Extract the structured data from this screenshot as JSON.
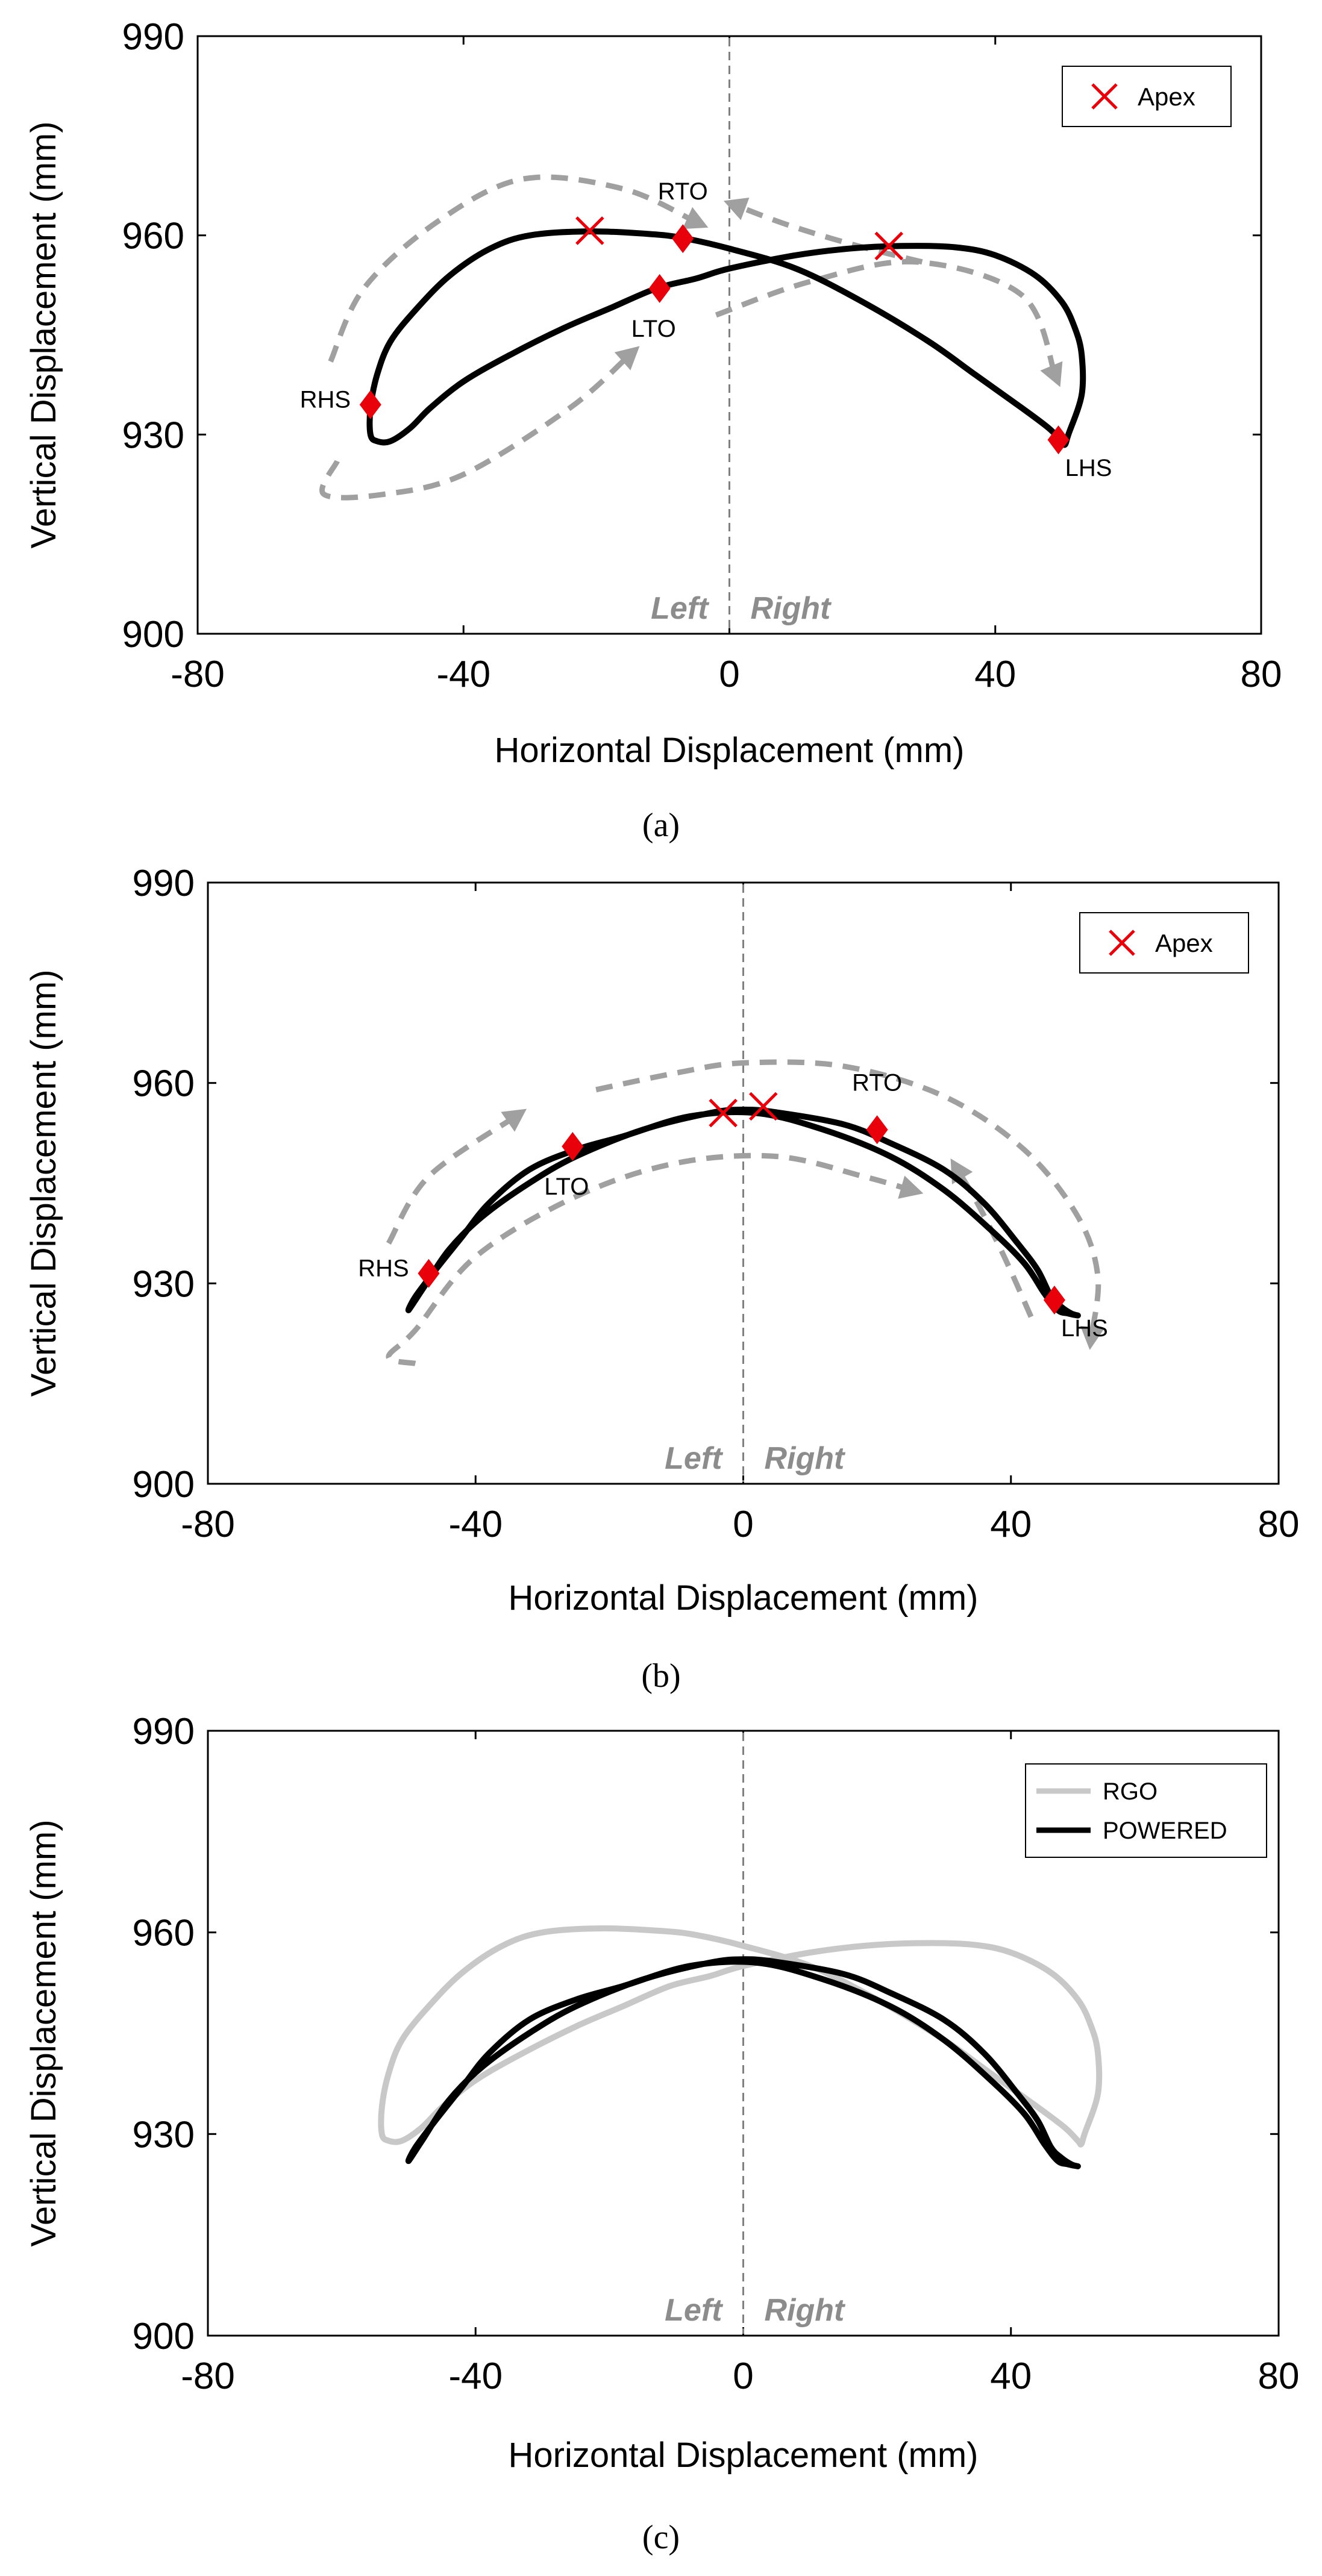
{
  "colors": {
    "trajectory": "#000000",
    "rgo": "#c8c8c8",
    "marker": "#e8000b",
    "arrow": "#a0a0a0",
    "centerline": "#808080",
    "lr_text": "#8c8c8c"
  },
  "chart_data": [
    {
      "type": "line",
      "caption": "(a)",
      "xlabel": "Horizontal Displacement (mm)",
      "ylabel": "Vertical Displacement (mm)",
      "xlim": [
        -80,
        80
      ],
      "ylim": [
        900,
        990
      ],
      "xticks": [
        "-80",
        "-40",
        "0",
        "40",
        "80"
      ],
      "yticks": [
        "900",
        "930",
        "960",
        "990"
      ],
      "side_labels": [
        "Left",
        "Right"
      ],
      "legend": [
        "Apex"
      ],
      "series": [
        {
          "name": "trajectory",
          "style": "black",
          "points": [
            [
              -54,
              934
            ],
            [
              -53,
              939
            ],
            [
              -51,
              944
            ],
            [
              -47,
              949
            ],
            [
              -42,
              954
            ],
            [
              -36,
              958
            ],
            [
              -30,
              960
            ],
            [
              -21,
              960.6
            ],
            [
              -12,
              960.2
            ],
            [
              -7,
              959.6
            ],
            [
              0,
              958
            ],
            [
              10,
              955
            ],
            [
              20,
              950
            ],
            [
              30,
              944
            ],
            [
              37,
              939
            ],
            [
              44,
              934
            ],
            [
              48,
              931
            ],
            [
              50,
              929
            ],
            [
              50.5,
              928.5
            ],
            [
              51,
              930
            ],
            [
              53,
              936
            ],
            [
              53,
              942
            ],
            [
              52,
              946
            ],
            [
              50,
              950
            ],
            [
              46,
              954
            ],
            [
              40,
              957
            ],
            [
              34,
              958.2
            ],
            [
              26,
              958.4
            ],
            [
              18,
              958
            ],
            [
              10,
              957
            ],
            [
              0,
              955
            ],
            [
              -5,
              953.5
            ],
            [
              -11,
              952
            ],
            [
              -18,
              949
            ],
            [
              -25,
              946
            ],
            [
              -33,
              942
            ],
            [
              -40,
              938
            ],
            [
              -45,
              934
            ],
            [
              -48,
              931
            ],
            [
              -51,
              929
            ],
            [
              -53,
              929
            ],
            [
              -54,
              930
            ],
            [
              -54,
              934
            ]
          ]
        }
      ],
      "events": [
        {
          "label": "RHS",
          "x": -54,
          "y": 934.5
        },
        {
          "label": "RTO",
          "x": -7,
          "y": 959.5
        },
        {
          "label": "LTO",
          "x": -10.5,
          "y": 952
        },
        {
          "label": "LHS",
          "x": 49.5,
          "y": 929.2
        }
      ],
      "apex": [
        [
          -21,
          960.7
        ],
        [
          24,
          958.4
        ]
      ],
      "direction_arrows": [
        [
          [
            -60,
            941
          ],
          [
            -55,
            952
          ],
          [
            -44,
            962
          ],
          [
            -31,
            968.5
          ],
          [
            -16,
            967
          ],
          [
            -5,
            962
          ]
        ],
        [
          [
            -59,
            926
          ],
          [
            -61,
            921
          ],
          [
            -52,
            921
          ],
          [
            -40,
            924
          ],
          [
            -24,
            934
          ],
          [
            -15,
            942
          ]
        ],
        [
          [
            -2,
            948
          ],
          [
            12,
            953
          ],
          [
            28,
            956
          ],
          [
            44,
            951
          ],
          [
            49,
            939
          ]
        ],
        [
          [
            29,
            956
          ],
          [
            19,
            958.5
          ],
          [
            9,
            961.5
          ],
          [
            1,
            964.5
          ]
        ]
      ]
    },
    {
      "type": "line",
      "caption": "(b)",
      "xlabel": "Horizontal Displacement (mm)",
      "ylabel": "Vertical Displacement (mm)",
      "xlim": [
        -80,
        80
      ],
      "ylim": [
        900,
        990
      ],
      "xticks": [
        "-80",
        "-40",
        "0",
        "40",
        "80"
      ],
      "yticks": [
        "900",
        "930",
        "960",
        "990"
      ],
      "side_labels": [
        "Left",
        "Right"
      ],
      "legend": [
        "Apex"
      ],
      "series": [
        {
          "name": "trajectory",
          "style": "black",
          "points": [
            [
              -50,
              926
            ],
            [
              -48,
              929
            ],
            [
              -44,
              935
            ],
            [
              -39,
              940
            ],
            [
              -32,
              945
            ],
            [
              -25,
              949
            ],
            [
              -15,
              953
            ],
            [
              -5,
              955.5
            ],
            [
              0,
              956
            ],
            [
              5,
              955.6
            ],
            [
              15,
              953.8
            ],
            [
              22,
              951
            ],
            [
              30,
              947
            ],
            [
              36,
              942
            ],
            [
              41,
              936
            ],
            [
              44,
              932
            ],
            [
              46,
              928
            ],
            [
              47.5,
              926.5
            ],
            [
              49,
              925.5
            ],
            [
              50,
              925.2
            ],
            [
              48.5,
              925.5
            ],
            [
              47,
              926
            ],
            [
              45,
              928.5
            ],
            [
              42,
              933
            ],
            [
              37,
              938
            ],
            [
              30,
              944
            ],
            [
              22,
              949
            ],
            [
              12,
              953
            ],
            [
              2,
              955.5
            ],
            [
              -8,
              955
            ],
            [
              -18,
              952
            ],
            [
              -25,
              950
            ],
            [
              -32,
              947
            ],
            [
              -38,
              942
            ],
            [
              -42,
              937
            ],
            [
              -46,
              932
            ],
            [
              -49,
              928
            ],
            [
              -50,
              926
            ]
          ]
        }
      ],
      "events": [
        {
          "label": "RHS",
          "x": -47,
          "y": 931.5
        },
        {
          "label": "LTO",
          "x": -25.5,
          "y": 950.5
        },
        {
          "label": "RTO",
          "x": 20,
          "y": 953
        },
        {
          "label": "LHS",
          "x": 46.5,
          "y": 927.5
        }
      ],
      "apex": [
        [
          -3,
          955.5
        ],
        [
          3,
          956.5
        ]
      ],
      "direction_arrows": [
        [
          [
            -53,
            936
          ],
          [
            -47,
            946
          ],
          [
            -34,
            955
          ]
        ],
        [
          [
            -49,
            918
          ],
          [
            -53,
            919
          ],
          [
            -49,
            923
          ],
          [
            -40,
            934
          ],
          [
            -25,
            943
          ],
          [
            -10,
            948
          ],
          [
            5,
            949
          ],
          [
            18,
            946
          ],
          [
            25,
            944
          ]
        ],
        [
          [
            -22,
            959
          ],
          [
            -10,
            961.5
          ],
          [
            0,
            963
          ],
          [
            15,
            962.5
          ],
          [
            30,
            958
          ],
          [
            42,
            950
          ],
          [
            50,
            940
          ],
          [
            53,
            931
          ],
          [
            52,
            922
          ]
        ],
        [
          [
            43,
            925
          ],
          [
            39,
            934
          ],
          [
            35,
            942
          ],
          [
            32,
            947
          ]
        ]
      ]
    },
    {
      "type": "line",
      "caption": "(c)",
      "xlabel": "Horizontal Displacement (mm)",
      "ylabel": "Vertical Displacement (mm)",
      "xlim": [
        -80,
        80
      ],
      "ylim": [
        900,
        990
      ],
      "xticks": [
        "-80",
        "-40",
        "0",
        "40",
        "80"
      ],
      "yticks": [
        "900",
        "930",
        "960",
        "990"
      ],
      "side_labels": [
        "Left",
        "Right"
      ],
      "legend": [
        "RGO",
        "POWERED"
      ],
      "series": [
        {
          "name": "RGO",
          "style": "gray",
          "points": [
            [
              -54,
              934
            ],
            [
              -53,
              939
            ],
            [
              -51,
              944
            ],
            [
              -47,
              949
            ],
            [
              -42,
              954
            ],
            [
              -36,
              958
            ],
            [
              -30,
              960
            ],
            [
              -21,
              960.6
            ],
            [
              -12,
              960.2
            ],
            [
              -7,
              959.6
            ],
            [
              0,
              958
            ],
            [
              10,
              955
            ],
            [
              20,
              950
            ],
            [
              30,
              944
            ],
            [
              37,
              939
            ],
            [
              44,
              934
            ],
            [
              48,
              931
            ],
            [
              50,
              929
            ],
            [
              50.5,
              928.5
            ],
            [
              51,
              930
            ],
            [
              53,
              936
            ],
            [
              53,
              942
            ],
            [
              52,
              946
            ],
            [
              50,
              950
            ],
            [
              46,
              954
            ],
            [
              40,
              957
            ],
            [
              34,
              958.2
            ],
            [
              26,
              958.4
            ],
            [
              18,
              958
            ],
            [
              10,
              957
            ],
            [
              0,
              955
            ],
            [
              -5,
              953.5
            ],
            [
              -11,
              952
            ],
            [
              -18,
              949
            ],
            [
              -25,
              946
            ],
            [
              -33,
              942
            ],
            [
              -40,
              938
            ],
            [
              -45,
              934
            ],
            [
              -48,
              931
            ],
            [
              -51,
              929
            ],
            [
              -53,
              929
            ],
            [
              -54,
              930
            ],
            [
              -54,
              934
            ]
          ]
        },
        {
          "name": "POWERED",
          "style": "black",
          "points": [
            [
              -50,
              926
            ],
            [
              -48,
              929
            ],
            [
              -44,
              935
            ],
            [
              -39,
              940
            ],
            [
              -32,
              945
            ],
            [
              -25,
              949
            ],
            [
              -15,
              953
            ],
            [
              -5,
              955.5
            ],
            [
              0,
              956
            ],
            [
              5,
              955.6
            ],
            [
              15,
              953.8
            ],
            [
              22,
              951
            ],
            [
              30,
              947
            ],
            [
              36,
              942
            ],
            [
              41,
              936
            ],
            [
              44,
              932
            ],
            [
              46,
              928
            ],
            [
              47.5,
              926.5
            ],
            [
              49,
              925.5
            ],
            [
              50,
              925.2
            ],
            [
              48.5,
              925.5
            ],
            [
              47,
              926
            ],
            [
              45,
              928.5
            ],
            [
              42,
              933
            ],
            [
              37,
              938
            ],
            [
              30,
              944
            ],
            [
              22,
              949
            ],
            [
              12,
              953
            ],
            [
              2,
              955.5
            ],
            [
              -8,
              955
            ],
            [
              -18,
              952
            ],
            [
              -25,
              950
            ],
            [
              -32,
              947
            ],
            [
              -38,
              942
            ],
            [
              -42,
              937
            ],
            [
              -46,
              932
            ],
            [
              -49,
              928
            ],
            [
              -50,
              926
            ]
          ]
        }
      ],
      "events": [],
      "apex": [],
      "direction_arrows": []
    }
  ]
}
